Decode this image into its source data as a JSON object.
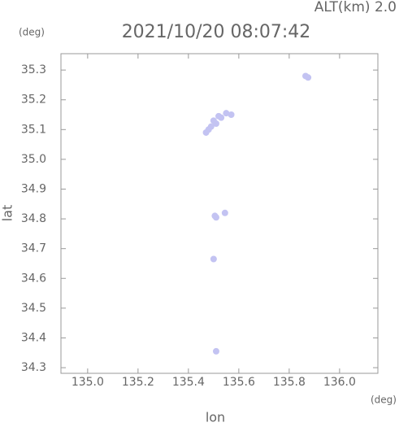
{
  "chart_data": {
    "type": "scatter",
    "title": "2021/10/20 08:07:42",
    "subtitle": "ALT(km) 2.0",
    "y_unit": "(deg)",
    "x_unit": "(deg)",
    "xlabel": "lon",
    "ylabel": "lat",
    "xlim": [
      134.894,
      136.152
    ],
    "ylim": [
      34.281,
      35.355
    ],
    "xticks": [
      {
        "value": 135,
        "label": "135.0"
      },
      135.2,
      135.4,
      135.6,
      135.8,
      {
        "value": 136,
        "label": "136.0"
      }
    ],
    "yticks": [
      34.3,
      34.4,
      34.5,
      34.6,
      34.7,
      34.8,
      34.9,
      {
        "value": 35,
        "label": "35.0"
      },
      35.1,
      35.2,
      35.3
    ],
    "series": [
      {
        "color": "#c3c3f2",
        "x": [
          135.47,
          135.49,
          135.51,
          135.53,
          135.55,
          135.57,
          135.52,
          135.5,
          135.48,
          135.865,
          135.875,
          135.505,
          135.51,
          135.545,
          135.5,
          135.51
        ],
        "y": [
          35.09,
          35.11,
          35.12,
          35.14,
          35.155,
          35.15,
          35.145,
          35.13,
          35.1,
          35.28,
          35.275,
          34.81,
          34.805,
          34.82,
          34.665,
          34.355
        ]
      }
    ]
  }
}
